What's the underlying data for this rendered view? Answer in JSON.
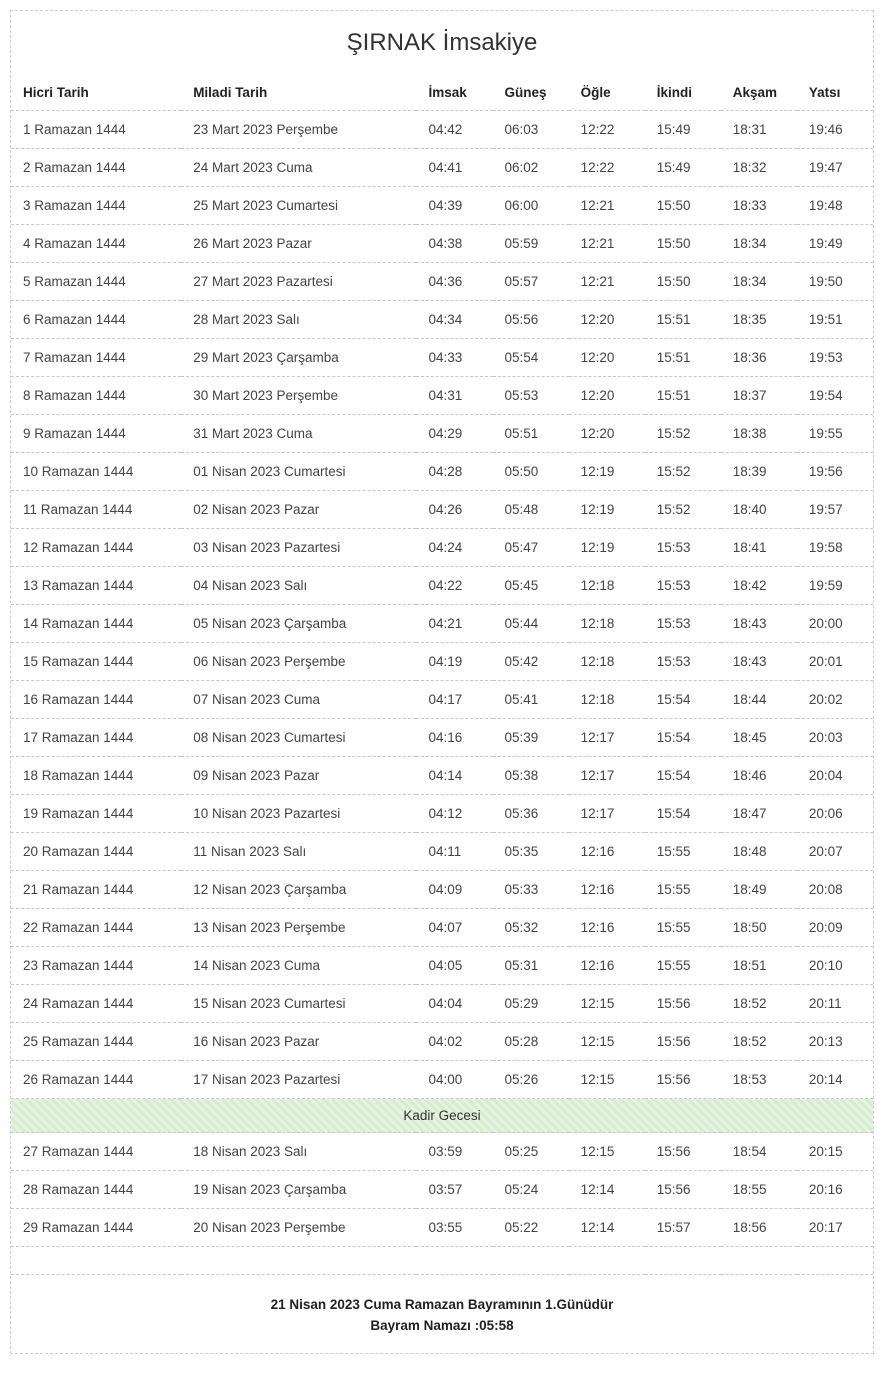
{
  "title": "ŞIRNAK İmsakiye",
  "columns": [
    "Hicri Tarih",
    "Miladi Tarih",
    "İmsak",
    "Güneş",
    "Öğle",
    "İkindi",
    "Akşam",
    "Yatsı"
  ],
  "rows": [
    {
      "hicri": "1 Ramazan 1444",
      "miladi": "23 Mart 2023 Perşembe",
      "imsak": "04:42",
      "gunes": "06:03",
      "ogle": "12:22",
      "ikindi": "15:49",
      "aksam": "18:31",
      "yatsi": "19:46"
    },
    {
      "hicri": "2 Ramazan 1444",
      "miladi": "24 Mart 2023 Cuma",
      "imsak": "04:41",
      "gunes": "06:02",
      "ogle": "12:22",
      "ikindi": "15:49",
      "aksam": "18:32",
      "yatsi": "19:47"
    },
    {
      "hicri": "3 Ramazan 1444",
      "miladi": "25 Mart 2023 Cumartesi",
      "imsak": "04:39",
      "gunes": "06:00",
      "ogle": "12:21",
      "ikindi": "15:50",
      "aksam": "18:33",
      "yatsi": "19:48"
    },
    {
      "hicri": "4 Ramazan 1444",
      "miladi": "26 Mart 2023 Pazar",
      "imsak": "04:38",
      "gunes": "05:59",
      "ogle": "12:21",
      "ikindi": "15:50",
      "aksam": "18:34",
      "yatsi": "19:49"
    },
    {
      "hicri": "5 Ramazan 1444",
      "miladi": "27 Mart 2023 Pazartesi",
      "imsak": "04:36",
      "gunes": "05:57",
      "ogle": "12:21",
      "ikindi": "15:50",
      "aksam": "18:34",
      "yatsi": "19:50"
    },
    {
      "hicri": "6 Ramazan 1444",
      "miladi": "28 Mart 2023 Salı",
      "imsak": "04:34",
      "gunes": "05:56",
      "ogle": "12:20",
      "ikindi": "15:51",
      "aksam": "18:35",
      "yatsi": "19:51"
    },
    {
      "hicri": "7 Ramazan 1444",
      "miladi": "29 Mart 2023 Çarşamba",
      "imsak": "04:33",
      "gunes": "05:54",
      "ogle": "12:20",
      "ikindi": "15:51",
      "aksam": "18:36",
      "yatsi": "19:53"
    },
    {
      "hicri": "8 Ramazan 1444",
      "miladi": "30 Mart 2023 Perşembe",
      "imsak": "04:31",
      "gunes": "05:53",
      "ogle": "12:20",
      "ikindi": "15:51",
      "aksam": "18:37",
      "yatsi": "19:54"
    },
    {
      "hicri": "9 Ramazan 1444",
      "miladi": "31 Mart 2023 Cuma",
      "imsak": "04:29",
      "gunes": "05:51",
      "ogle": "12:20",
      "ikindi": "15:52",
      "aksam": "18:38",
      "yatsi": "19:55"
    },
    {
      "hicri": "10 Ramazan 1444",
      "miladi": "01 Nisan 2023 Cumartesi",
      "imsak": "04:28",
      "gunes": "05:50",
      "ogle": "12:19",
      "ikindi": "15:52",
      "aksam": "18:39",
      "yatsi": "19:56"
    },
    {
      "hicri": "11 Ramazan 1444",
      "miladi": "02 Nisan 2023 Pazar",
      "imsak": "04:26",
      "gunes": "05:48",
      "ogle": "12:19",
      "ikindi": "15:52",
      "aksam": "18:40",
      "yatsi": "19:57"
    },
    {
      "hicri": "12 Ramazan 1444",
      "miladi": "03 Nisan 2023 Pazartesi",
      "imsak": "04:24",
      "gunes": "05:47",
      "ogle": "12:19",
      "ikindi": "15:53",
      "aksam": "18:41",
      "yatsi": "19:58"
    },
    {
      "hicri": "13 Ramazan 1444",
      "miladi": "04 Nisan 2023 Salı",
      "imsak": "04:22",
      "gunes": "05:45",
      "ogle": "12:18",
      "ikindi": "15:53",
      "aksam": "18:42",
      "yatsi": "19:59"
    },
    {
      "hicri": "14 Ramazan 1444",
      "miladi": "05 Nisan 2023 Çarşamba",
      "imsak": "04:21",
      "gunes": "05:44",
      "ogle": "12:18",
      "ikindi": "15:53",
      "aksam": "18:43",
      "yatsi": "20:00"
    },
    {
      "hicri": "15 Ramazan 1444",
      "miladi": "06 Nisan 2023 Perşembe",
      "imsak": "04:19",
      "gunes": "05:42",
      "ogle": "12:18",
      "ikindi": "15:53",
      "aksam": "18:43",
      "yatsi": "20:01"
    },
    {
      "hicri": "16 Ramazan 1444",
      "miladi": "07 Nisan 2023 Cuma",
      "imsak": "04:17",
      "gunes": "05:41",
      "ogle": "12:18",
      "ikindi": "15:54",
      "aksam": "18:44",
      "yatsi": "20:02"
    },
    {
      "hicri": "17 Ramazan 1444",
      "miladi": "08 Nisan 2023 Cumartesi",
      "imsak": "04:16",
      "gunes": "05:39",
      "ogle": "12:17",
      "ikindi": "15:54",
      "aksam": "18:45",
      "yatsi": "20:03"
    },
    {
      "hicri": "18 Ramazan 1444",
      "miladi": "09 Nisan 2023 Pazar",
      "imsak": "04:14",
      "gunes": "05:38",
      "ogle": "12:17",
      "ikindi": "15:54",
      "aksam": "18:46",
      "yatsi": "20:04"
    },
    {
      "hicri": "19 Ramazan 1444",
      "miladi": "10 Nisan 2023 Pazartesi",
      "imsak": "04:12",
      "gunes": "05:36",
      "ogle": "12:17",
      "ikindi": "15:54",
      "aksam": "18:47",
      "yatsi": "20:06"
    },
    {
      "hicri": "20 Ramazan 1444",
      "miladi": "11 Nisan 2023 Salı",
      "imsak": "04:11",
      "gunes": "05:35",
      "ogle": "12:16",
      "ikindi": "15:55",
      "aksam": "18:48",
      "yatsi": "20:07"
    },
    {
      "hicri": "21 Ramazan 1444",
      "miladi": "12 Nisan 2023 Çarşamba",
      "imsak": "04:09",
      "gunes": "05:33",
      "ogle": "12:16",
      "ikindi": "15:55",
      "aksam": "18:49",
      "yatsi": "20:08"
    },
    {
      "hicri": "22 Ramazan 1444",
      "miladi": "13 Nisan 2023 Perşembe",
      "imsak": "04:07",
      "gunes": "05:32",
      "ogle": "12:16",
      "ikindi": "15:55",
      "aksam": "18:50",
      "yatsi": "20:09"
    },
    {
      "hicri": "23 Ramazan 1444",
      "miladi": "14 Nisan 2023 Cuma",
      "imsak": "04:05",
      "gunes": "05:31",
      "ogle": "12:16",
      "ikindi": "15:55",
      "aksam": "18:51",
      "yatsi": "20:10"
    },
    {
      "hicri": "24 Ramazan 1444",
      "miladi": "15 Nisan 2023 Cumartesi",
      "imsak": "04:04",
      "gunes": "05:29",
      "ogle": "12:15",
      "ikindi": "15:56",
      "aksam": "18:52",
      "yatsi": "20:11"
    },
    {
      "hicri": "25 Ramazan 1444",
      "miladi": "16 Nisan 2023 Pazar",
      "imsak": "04:02",
      "gunes": "05:28",
      "ogle": "12:15",
      "ikindi": "15:56",
      "aksam": "18:52",
      "yatsi": "20:13"
    },
    {
      "hicri": "26 Ramazan 1444",
      "miladi": "17 Nisan 2023 Pazartesi",
      "imsak": "04:00",
      "gunes": "05:26",
      "ogle": "12:15",
      "ikindi": "15:56",
      "aksam": "18:53",
      "yatsi": "20:14"
    },
    {
      "special": "Kadir Gecesi"
    },
    {
      "hicri": "27 Ramazan 1444",
      "miladi": "18 Nisan 2023 Salı",
      "imsak": "03:59",
      "gunes": "05:25",
      "ogle": "12:15",
      "ikindi": "15:56",
      "aksam": "18:54",
      "yatsi": "20:15"
    },
    {
      "hicri": "28 Ramazan 1444",
      "miladi": "19 Nisan 2023 Çarşamba",
      "imsak": "03:57",
      "gunes": "05:24",
      "ogle": "12:14",
      "ikindi": "15:56",
      "aksam": "18:55",
      "yatsi": "20:16"
    },
    {
      "hicri": "29 Ramazan 1444",
      "miladi": "20 Nisan 2023 Perşembe",
      "imsak": "03:55",
      "gunes": "05:22",
      "ogle": "12:14",
      "ikindi": "15:57",
      "aksam": "18:56",
      "yatsi": "20:17"
    }
  ],
  "footer": {
    "line1": "21 Nisan 2023 Cuma Ramazan Bayramının 1.Günüdür",
    "line2": "Bayram Namazı :05:58"
  },
  "colors": {
    "border_dash": "#cccccc",
    "text": "#333333",
    "special_bg": "#d7ecd1"
  }
}
